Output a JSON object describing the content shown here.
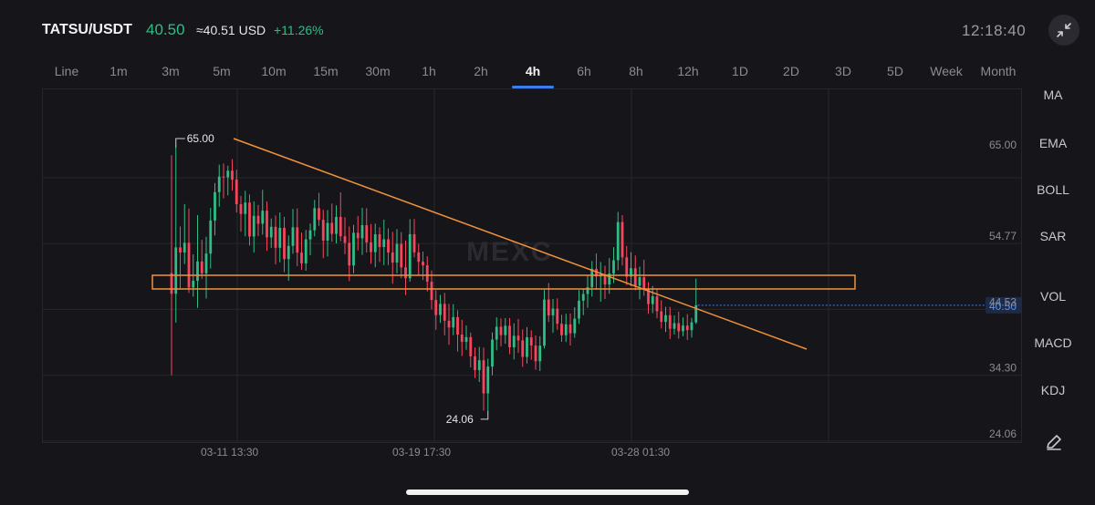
{
  "header": {
    "pair": "TATSU/USDT",
    "price": "40.50",
    "usd_equiv": "≈40.51 USD",
    "change": "+11.26%",
    "clock": "12:18:40"
  },
  "tabs": [
    "Line",
    "1m",
    "3m",
    "5m",
    "10m",
    "15m",
    "30m",
    "1h",
    "2h",
    "4h",
    "6h",
    "8h",
    "12h",
    "1D",
    "2D",
    "3D",
    "5D",
    "Week",
    "Month"
  ],
  "active_tab": "4h",
  "sidebar": {
    "items": [
      "MA",
      "EMA",
      "BOLL",
      "SAR",
      "VOL",
      "MACD",
      "KDJ"
    ]
  },
  "colors": {
    "up": "#2fbd85",
    "down": "#f6465d",
    "annotation": "#f0923a",
    "current_price": "#3d7cf2",
    "grid": "#26262c"
  },
  "icons": [
    "fullscreen-exit-icon",
    "edit-pencil-icon"
  ],
  "watermark": "MEXC",
  "chart_data": {
    "type": "candlestick",
    "y_axis_labels": [
      "65.00",
      "54.77",
      "44.53",
      "34.30",
      "24.06"
    ],
    "ylim": [
      21.5,
      72.5
    ],
    "x_axis_labels": [
      "03-11 13:30",
      "03-19 17:30",
      "03-28 01:30"
    ],
    "current_price_tag": "40.50",
    "high_marker": "65.00",
    "low_marker": "24.06",
    "candles": [
      [
        45.52,
        63.81,
        29.62,
        42.29
      ],
      [
        42.29,
        65.0,
        37.81,
        49.5
      ],
      [
        49.5,
        52.76,
        42.96,
        48.7
      ],
      [
        48.7,
        56.23,
        46.91,
        50.21
      ],
      [
        50.21,
        55.53,
        42.4,
        43.26
      ],
      [
        43.26,
        48.41,
        41.83,
        44.3
      ],
      [
        44.3,
        54.51,
        40.1,
        47.31
      ],
      [
        47.31,
        50.68,
        44.6,
        45.46
      ],
      [
        45.46,
        51.14,
        41.54,
        48.52
      ],
      [
        48.52,
        55.62,
        46.2,
        53.68
      ],
      [
        53.68,
        59.5,
        51.35,
        58.08
      ],
      [
        58.08,
        62.35,
        55.81,
        60.5
      ],
      [
        60.5,
        62.53,
        57.11,
        60.38
      ],
      [
        60.38,
        62.19,
        57.58,
        61.41
      ],
      [
        61.41,
        63.21,
        58.31,
        60.02
      ],
      [
        60.02,
        61.55,
        54.92,
        56.21
      ],
      [
        56.21,
        57.48,
        51.96,
        54.69
      ],
      [
        54.69,
        58.29,
        51.22,
        56.46
      ],
      [
        56.46,
        57.73,
        49.78,
        51.19
      ],
      [
        51.19,
        56.65,
        48.68,
        54.4
      ],
      [
        54.4,
        56.09,
        51.25,
        53.17
      ],
      [
        53.17,
        58.43,
        51.48,
        55.2
      ],
      [
        55.2,
        56.63,
        48.95,
        51.04
      ],
      [
        51.04,
        53.99,
        49.41,
        52.69
      ],
      [
        52.69,
        54.45,
        46.86,
        49.43
      ],
      [
        49.43,
        54.92,
        47.18,
        52.53
      ],
      [
        52.53,
        54.24,
        45.66,
        47.67
      ],
      [
        47.67,
        51.36,
        44.33,
        49.73
      ],
      [
        49.73,
        55.47,
        48.48,
        52.62
      ],
      [
        52.62,
        55.55,
        46.59,
        48.69
      ],
      [
        48.69,
        51.8,
        46.01,
        47.01
      ],
      [
        47.01,
        52.21,
        45.88,
        50.74
      ],
      [
        50.74,
        53.2,
        48.25,
        52.14
      ],
      [
        52.14,
        56.87,
        51.2,
        55.59
      ],
      [
        55.59,
        57.98,
        52.85,
        53.79
      ],
      [
        53.79,
        55.35,
        47.82,
        50.55
      ],
      [
        50.55,
        55.29,
        48.08,
        53.3
      ],
      [
        53.3,
        56.31,
        50.39,
        51.59
      ],
      [
        51.59,
        56.04,
        50.12,
        54.23
      ],
      [
        54.23,
        58.05,
        50.45,
        51.22
      ],
      [
        51.22,
        54.18,
        48.44,
        50.2
      ],
      [
        50.2,
        52.74,
        44.25,
        46.68
      ],
      [
        46.68,
        53.01,
        45.48,
        51.77
      ],
      [
        51.77,
        54.37,
        49.02,
        50.91
      ],
      [
        50.91,
        55.64,
        48.32,
        52.95
      ],
      [
        52.95,
        55.58,
        48.71,
        50.26
      ],
      [
        50.26,
        53.12,
        46.95,
        48.76
      ],
      [
        48.76,
        53.19,
        46.42,
        51.53
      ],
      [
        51.53,
        52.64,
        47.23,
        49.56
      ],
      [
        49.56,
        53.81,
        46.73,
        50.75
      ],
      [
        50.75,
        52.43,
        46.75,
        48.7
      ],
      [
        48.7,
        51.91,
        43.85,
        47.13
      ],
      [
        47.13,
        52.33,
        45.47,
        50.04
      ],
      [
        50.04,
        51.87,
        44.71,
        46.39
      ],
      [
        46.39,
        50.56,
        42.1,
        44.7
      ],
      [
        44.7,
        53.87,
        44.17,
        51.54
      ],
      [
        51.54,
        53.91,
        47.94,
        48.72
      ],
      [
        48.72,
        50.05,
        45.25,
        47.26
      ],
      [
        47.26,
        48.85,
        44.39,
        46.71
      ],
      [
        46.71,
        48.11,
        42.63,
        44.16
      ],
      [
        44.16,
        45.91,
        39.86,
        41.32
      ],
      [
        41.32,
        42.85,
        36.68,
        38.98
      ],
      [
        38.98,
        42.11,
        37.76,
        40.72
      ],
      [
        40.72,
        42.43,
        35.83,
        38.1
      ],
      [
        38.1,
        40.73,
        34.36,
        37.05
      ],
      [
        37.05,
        40.67,
        35.85,
        38.66
      ],
      [
        38.66,
        39.71,
        33.32,
        35.95
      ],
      [
        35.95,
        38.23,
        32.61,
        34.81
      ],
      [
        34.81,
        37.35,
        33.58,
        35.55
      ],
      [
        35.55,
        36.26,
        30.82,
        32.57
      ],
      [
        32.57,
        33.95,
        29.18,
        30.41
      ],
      [
        30.41,
        34.04,
        28.58,
        31.96
      ],
      [
        31.96,
        33.93,
        24.12,
        26.81
      ],
      [
        26.81,
        32.21,
        24.06,
        30.97
      ],
      [
        30.97,
        36.28,
        29.62,
        35.16
      ],
      [
        35.16,
        38.63,
        33.49,
        37.16
      ],
      [
        37.16,
        38.47,
        34.11,
        35.86
      ],
      [
        35.86,
        38.51,
        34.52,
        37.31
      ],
      [
        37.31,
        38.51,
        32.91,
        33.97
      ],
      [
        33.97,
        37.7,
        32.08,
        35.76
      ],
      [
        35.76,
        38.38,
        33.1,
        35.04
      ],
      [
        35.04,
        36.76,
        30.93,
        32.47
      ],
      [
        32.47,
        37.1,
        31.45,
        35.52
      ],
      [
        35.52,
        36.6,
        32.02,
        34.25
      ],
      [
        34.25,
        35.8,
        30.48,
        31.8
      ],
      [
        31.8,
        35.69,
        30.29,
        34.21
      ],
      [
        34.21,
        42.89,
        33.79,
        41.39
      ],
      [
        41.39,
        43.95,
        37.91,
        38.92
      ],
      [
        38.92,
        41.48,
        36.21,
        39.97
      ],
      [
        39.97,
        41.58,
        36.69,
        37.63
      ],
      [
        37.63,
        39.03,
        34.81,
        35.85
      ],
      [
        35.85,
        39.18,
        34.79,
        37.54
      ],
      [
        37.54,
        39.21,
        34.25,
        36.15
      ],
      [
        36.15,
        40.19,
        35.46,
        38.43
      ],
      [
        38.43,
        42.86,
        37.59,
        41.21
      ],
      [
        41.21,
        43.04,
        38.97,
        42.25
      ],
      [
        42.25,
        45.13,
        40.11,
        43.29
      ],
      [
        43.29,
        47.38,
        41.84,
        46.16
      ],
      [
        46.16,
        48.55,
        42.93,
        44.97
      ],
      [
        44.97,
        47.22,
        41.05,
        45.32
      ],
      [
        45.32,
        46.65,
        41.48,
        43.73
      ],
      [
        43.73,
        47.83,
        42.28,
        45.42
      ],
      [
        45.42,
        49.53,
        43.95,
        47.5
      ],
      [
        47.5,
        55.01,
        45.95,
        53.43
      ],
      [
        53.43,
        54.51,
        46.67,
        47.94
      ],
      [
        47.94,
        49.72,
        43.63,
        44.94
      ],
      [
        44.94,
        48.76,
        43.45,
        46.26
      ],
      [
        46.26,
        48.24,
        42.81,
        43.55
      ],
      [
        43.55,
        46.5,
        41.43,
        44.86
      ],
      [
        44.86,
        47.57,
        41.98,
        43.04
      ],
      [
        43.04,
        44.09,
        39.18,
        40.68
      ],
      [
        40.68,
        43.5,
        39.28,
        41.89
      ],
      [
        41.89,
        42.99,
        38.49,
        39.56
      ],
      [
        39.56,
        41.29,
        36.89,
        37.92
      ],
      [
        37.92,
        40.26,
        36.34,
        38.96
      ],
      [
        38.96,
        40.25,
        35.27,
        36.85
      ],
      [
        36.85,
        38.91,
        35.96,
        37.72
      ],
      [
        37.72,
        39.5,
        35.31,
        36.46
      ],
      [
        36.46,
        38.59,
        35.69,
        37.35
      ],
      [
        37.35,
        39.12,
        35.11,
        36.64
      ],
      [
        36.64,
        38.54,
        35.48,
        37.85
      ],
      [
        37.85,
        44.64,
        37.58,
        40.5
      ]
    ]
  }
}
